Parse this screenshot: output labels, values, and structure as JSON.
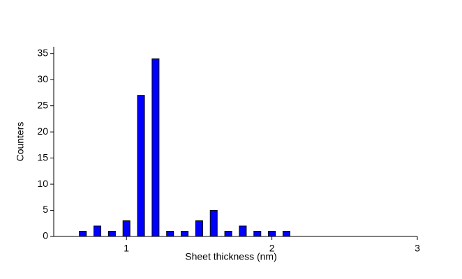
{
  "chart_data": {
    "type": "bar",
    "x_label": "Sheet thickness (nm)",
    "y_label": "Counters",
    "x": [
      0.7,
      0.8,
      0.9,
      1.0,
      1.1,
      1.2,
      1.3,
      1.4,
      1.5,
      1.6,
      1.7,
      1.8,
      1.9,
      2.0,
      2.1
    ],
    "values": [
      1,
      2,
      1,
      3,
      27,
      34,
      1,
      1,
      3,
      5,
      1,
      2,
      1,
      1,
      1
    ],
    "color": "#0000ff",
    "xlim": [
      0.5,
      3
    ],
    "xticks": [
      1,
      2,
      3
    ],
    "ylim": [
      0,
      36.3
    ],
    "yticks": [
      0,
      5,
      10,
      15,
      20,
      25,
      30,
      35
    ]
  }
}
